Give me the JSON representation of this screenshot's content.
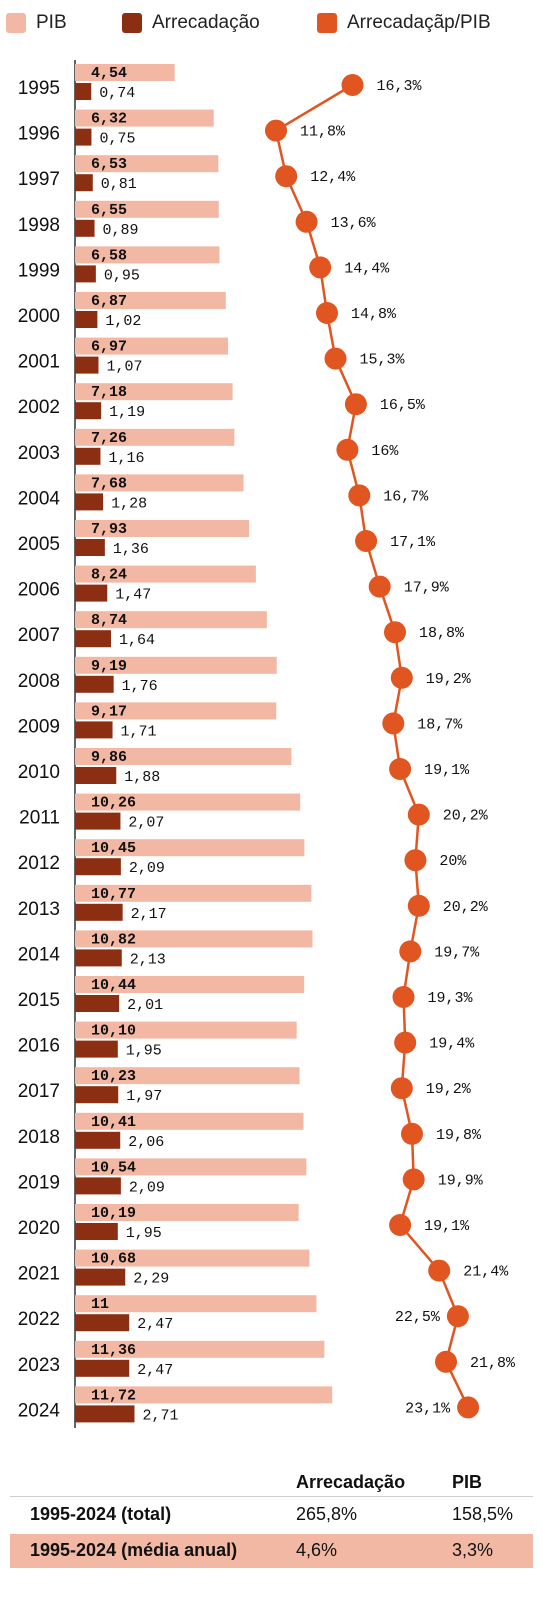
{
  "legend": [
    {
      "label": "PIB",
      "color": "#f2b8a4"
    },
    {
      "label": "Arrecadação",
      "color": "#8b2e12"
    },
    {
      "label": "Arrecadaçãp/PIB",
      "color": "#e05520"
    }
  ],
  "chart_data": {
    "type": "bar",
    "orientation": "horizontal",
    "categories": [
      "1995",
      "1996",
      "1997",
      "1998",
      "1999",
      "2000",
      "2001",
      "2002",
      "2003",
      "2004",
      "2005",
      "2006",
      "2007",
      "2008",
      "2009",
      "2010",
      "2011",
      "2012",
      "2013",
      "2014",
      "2015",
      "2016",
      "2017",
      "2018",
      "2019",
      "2020",
      "2021",
      "2022",
      "2023",
      "2024"
    ],
    "series": [
      {
        "name": "PIB",
        "color": "#f2b8a4",
        "values": [
          4.54,
          6.32,
          6.53,
          6.55,
          6.58,
          6.87,
          6.97,
          7.18,
          7.26,
          7.68,
          7.93,
          8.24,
          8.74,
          9.19,
          9.17,
          9.86,
          10.26,
          10.45,
          10.77,
          10.82,
          10.44,
          10.1,
          10.23,
          10.41,
          10.54,
          10.19,
          10.68,
          11,
          11.36,
          11.72
        ],
        "labels": [
          "4,54",
          "6,32",
          "6,53",
          "6,55",
          "6,58",
          "6,87",
          "6,97",
          "7,18",
          "7,26",
          "7,68",
          "7,93",
          "8,24",
          "8,74",
          "9,19",
          "9,17",
          "9,86",
          "10,26",
          "10,45",
          "10,77",
          "10,82",
          "10,44",
          "10,10",
          "10,23",
          "10,41",
          "10,54",
          "10,19",
          "10,68",
          "11",
          "11,36",
          "11,72"
        ]
      },
      {
        "name": "Arrecadação",
        "color": "#8b2e12",
        "values": [
          0.74,
          0.75,
          0.81,
          0.89,
          0.95,
          1.02,
          1.07,
          1.19,
          1.16,
          1.28,
          1.36,
          1.47,
          1.64,
          1.76,
          1.71,
          1.88,
          2.07,
          2.09,
          2.17,
          2.13,
          2.01,
          1.95,
          1.97,
          2.06,
          2.09,
          1.95,
          2.29,
          2.47,
          2.47,
          2.71
        ],
        "labels": [
          "0,74",
          "0,75",
          "0,81",
          "0,89",
          "0,95",
          "1,02",
          "1,07",
          "1,19",
          "1,16",
          "1,28",
          "1,36",
          "1,47",
          "1,64",
          "1,76",
          "1,71",
          "1,88",
          "2,07",
          "2,09",
          "2,17",
          "2,13",
          "2,01",
          "1,95",
          "1,97",
          "2,06",
          "2,09",
          "1,95",
          "2,29",
          "2,47",
          "2,47",
          "2,71"
        ]
      },
      {
        "name": "Arrecadaçãp/PIB",
        "color": "#e05520",
        "type": "line",
        "values": [
          16.3,
          11.8,
          12.4,
          13.6,
          14.4,
          14.8,
          15.3,
          16.5,
          16,
          16.7,
          17.1,
          17.9,
          18.8,
          19.2,
          18.7,
          19.1,
          20.2,
          20,
          20.2,
          19.7,
          19.3,
          19.4,
          19.2,
          19.8,
          19.9,
          19.1,
          21.4,
          22.5,
          21.8,
          23.1
        ],
        "labels": [
          "16,3%",
          "11,8%",
          "12,4%",
          "13,6%",
          "14,4%",
          "14,8%",
          "15,3%",
          "16,5%",
          "16%",
          "16,7%",
          "17,1%",
          "17,9%",
          "18,8%",
          "19,2%",
          "18,7%",
          "19,1%",
          "20,2%",
          "20%",
          "20,2%",
          "19,7%",
          "19,3%",
          "19,4%",
          "19,2%",
          "19,8%",
          "19,9%",
          "19,1%",
          "21,4%",
          "22,5%",
          "21,8%",
          "23,1%"
        ]
      }
    ],
    "legend_position": "top"
  },
  "summary": {
    "headers": [
      "Arrecadação",
      "PIB"
    ],
    "rows": [
      {
        "label": "1995-2024 (total)",
        "arrecadacao": "265,8%",
        "pib": "158,5%",
        "highlight": false
      },
      {
        "label": "1995-2024 (média anual)",
        "arrecadacao": "4,6%",
        "pib": "3,3%",
        "highlight": true
      }
    ],
    "highlight_color": "#f2b8a4"
  }
}
